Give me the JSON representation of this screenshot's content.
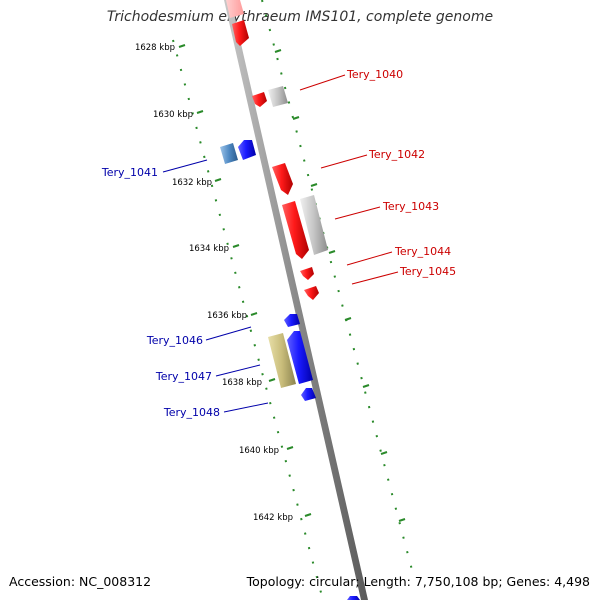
{
  "header": {
    "title": "Trichodesmium erythraeum IMS101, complete genome"
  },
  "footer": {
    "accession": "Accession: NC_008312",
    "summary": "Topology: circular; Length: 7,750,108 bp; Genes: 4,498"
  },
  "colors": {
    "backbone": "#8a8a8a",
    "tick_dots": "#2a8a2a",
    "forward_gene": "#ff1a1a",
    "reverse_gene": "#1a1aff",
    "rna_gene": "#c0c0c0",
    "pseudo_gene": "#c8bc7a",
    "blue_label": "#0000aa",
    "red_label": "#cc0000"
  },
  "position_labels": [
    "1628 kbp",
    "1630 kbp",
    "1632 kbp",
    "1634 kbp",
    "1636 kbp",
    "1638 kbp",
    "1640 kbp",
    "1642 kbp"
  ],
  "gene_labels": [
    "Tery_1040",
    "Tery_1041",
    "Tery_1042",
    "Tery_1043",
    "Tery_1044",
    "Tery_1045",
    "Tery_1046",
    "Tery_1047",
    "Tery_1048"
  ]
}
